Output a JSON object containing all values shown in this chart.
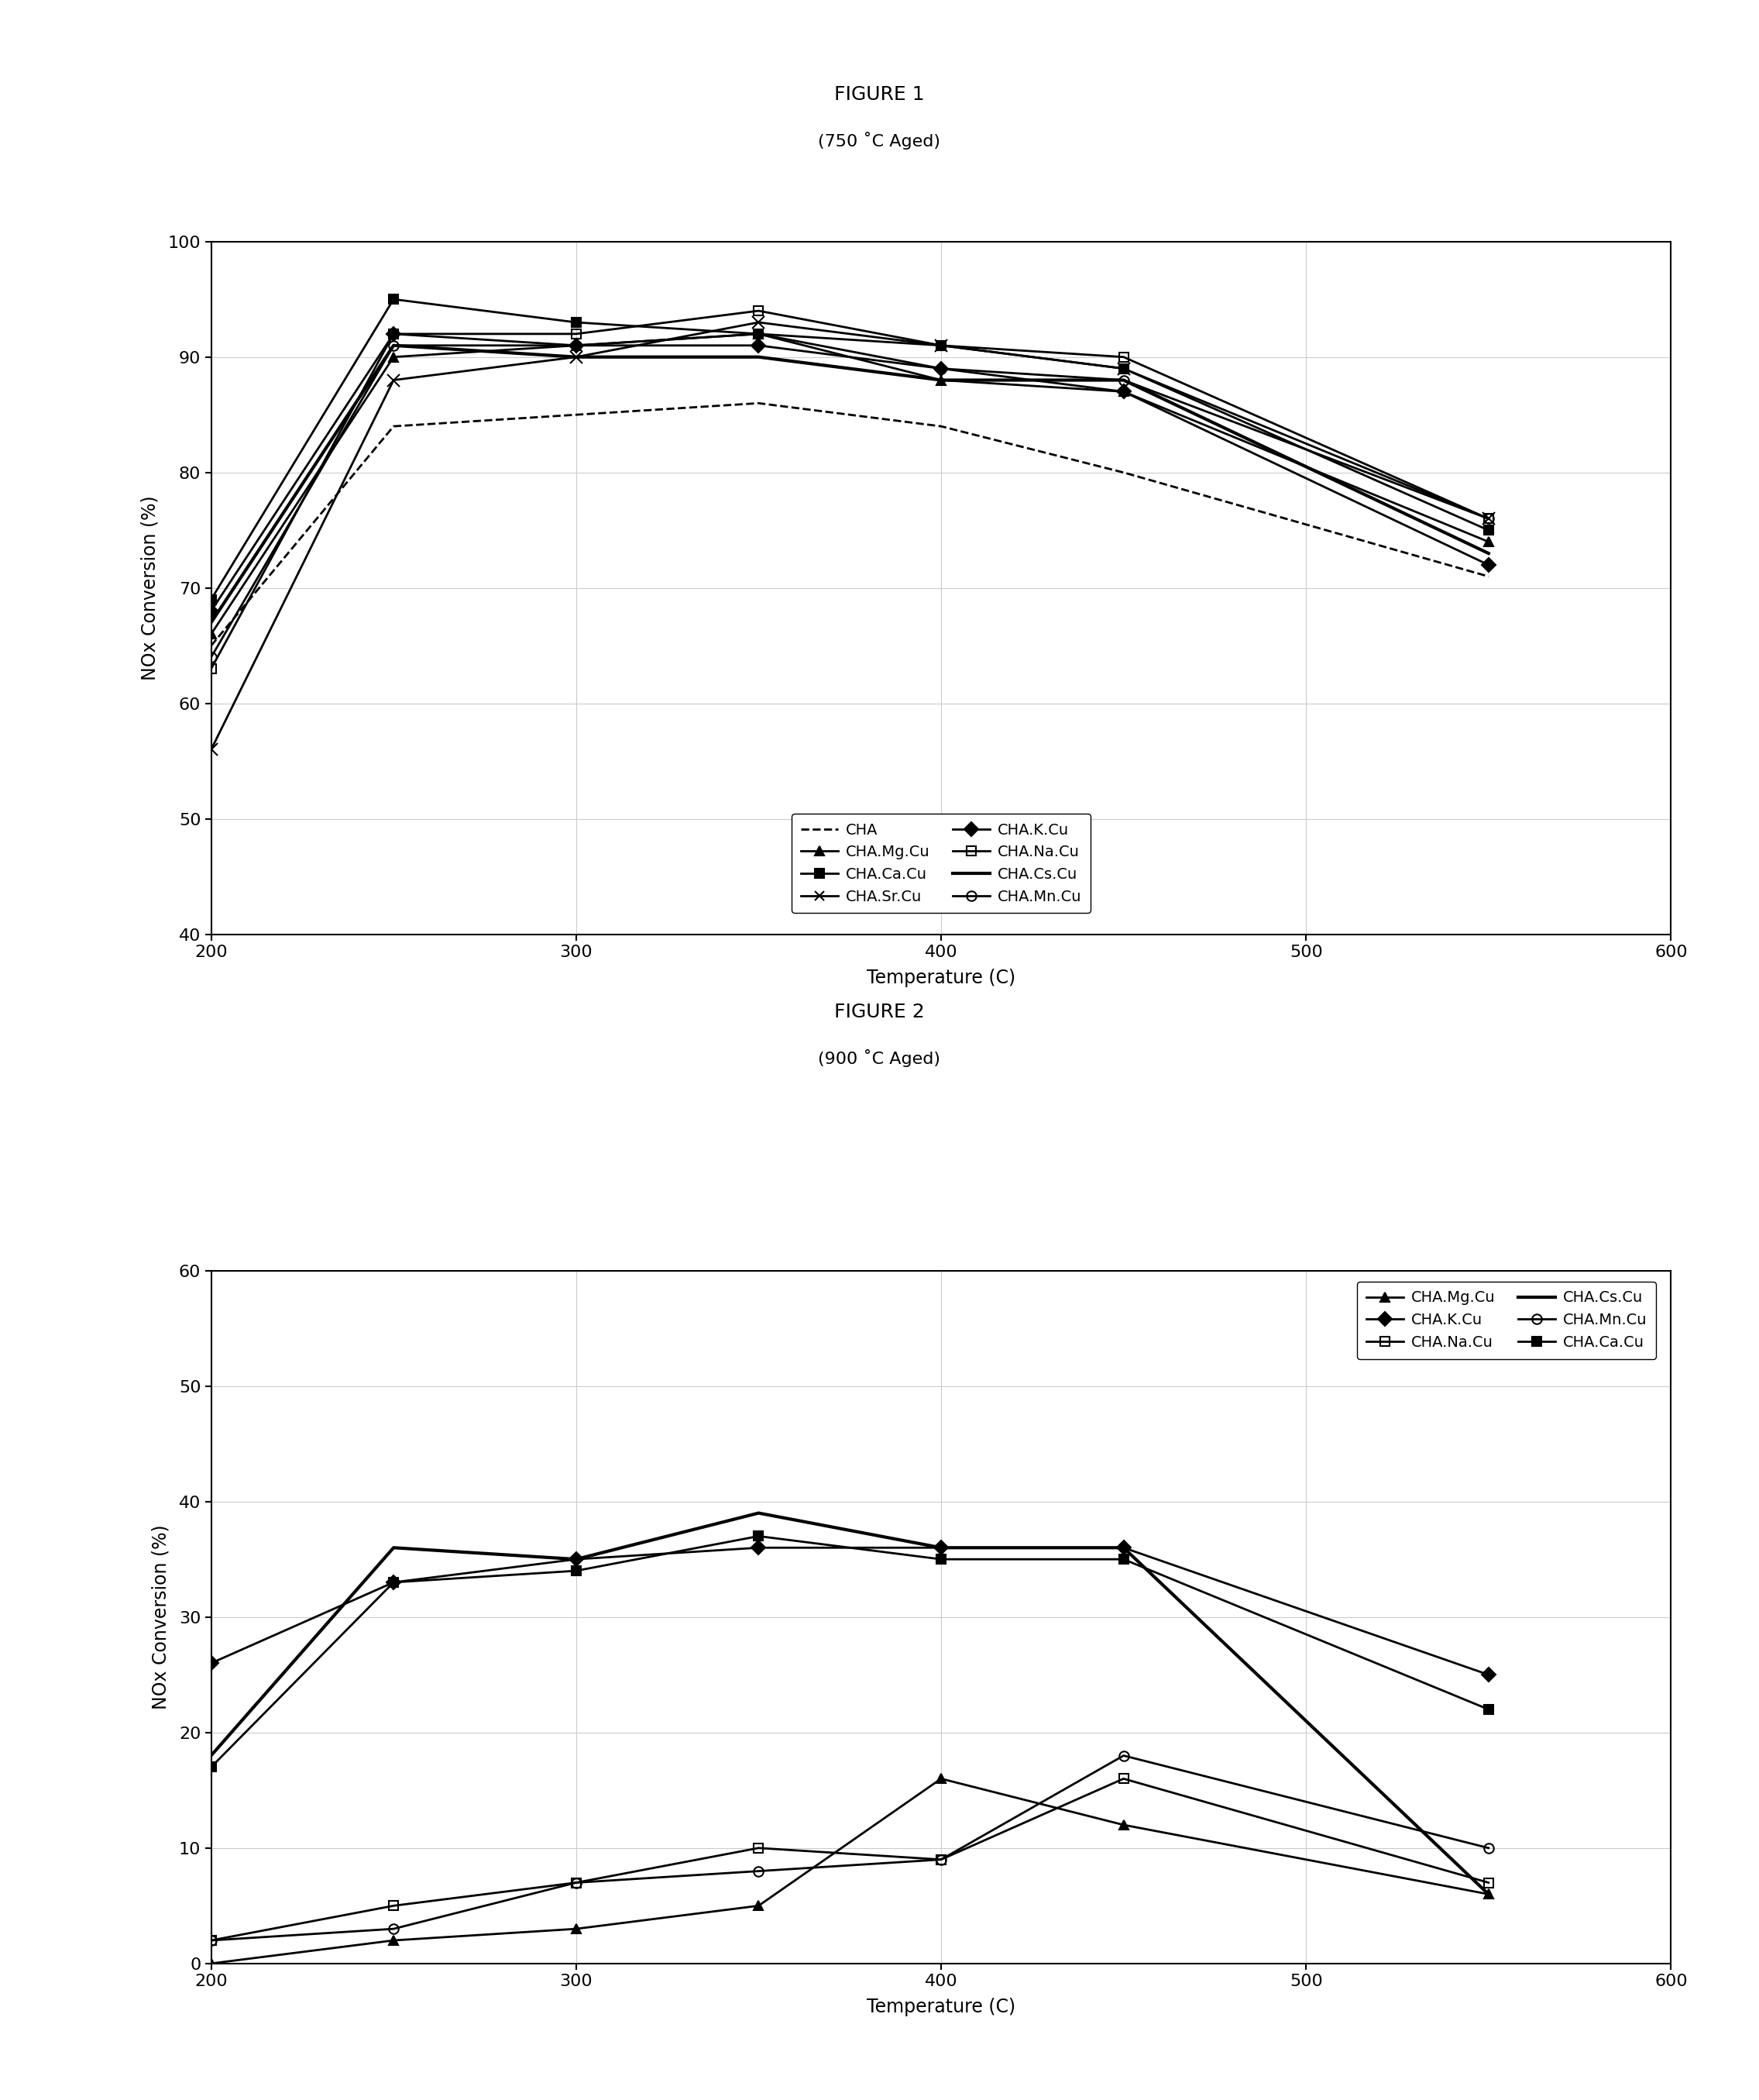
{
  "fig1_title": "FIGURE 1",
  "fig1_subtitle": "(750 ˚C Aged)",
  "fig2_title": "FIGURE 2",
  "fig2_subtitle": "(900 ˚C Aged)",
  "xlabel": "Temperature (C)",
  "ylabel": "NOx Conversion (%)",
  "fig1_xlim": [
    200,
    600
  ],
  "fig1_ylim": [
    40,
    100
  ],
  "fig2_xlim": [
    200,
    600
  ],
  "fig2_ylim": [
    0,
    60
  ],
  "fig1_xticks": [
    200,
    300,
    400,
    500,
    600
  ],
  "fig1_yticks": [
    40,
    50,
    60,
    70,
    80,
    90,
    100
  ],
  "fig2_xticks": [
    200,
    300,
    400,
    500,
    600
  ],
  "fig2_yticks": [
    0,
    10,
    20,
    30,
    40,
    50,
    60
  ],
  "fig1_series": {
    "CHA": {
      "x": [
        200,
        250,
        300,
        350,
        400,
        450,
        550
      ],
      "y": [
        65,
        84,
        85,
        86,
        84,
        80,
        71
      ],
      "style": "--",
      "marker": "none",
      "color": "#000000",
      "lw": 2.0,
      "ms": 0,
      "mfc": "#000000"
    },
    "CHA.Ca.Cu": {
      "x": [
        200,
        250,
        300,
        350,
        400,
        450,
        550
      ],
      "y": [
        69,
        95,
        93,
        92,
        91,
        89,
        75
      ],
      "style": "-",
      "marker": "s",
      "color": "#000000",
      "lw": 2.0,
      "ms": 9,
      "mfc": "#000000"
    },
    "CHA.K.Cu": {
      "x": [
        200,
        250,
        300,
        350,
        400,
        450,
        550
      ],
      "y": [
        68,
        92,
        91,
        91,
        89,
        87,
        72
      ],
      "style": "-",
      "marker": "D",
      "color": "#000000",
      "lw": 2.0,
      "ms": 9,
      "mfc": "#000000"
    },
    "CHA.Cs.Cu": {
      "x": [
        200,
        250,
        300,
        350,
        400,
        450,
        550
      ],
      "y": [
        67,
        91,
        90,
        90,
        88,
        88,
        73
      ],
      "style": "-",
      "marker": "none",
      "color": "#000000",
      "lw": 3.0,
      "ms": 0,
      "mfc": "#000000"
    },
    "CHA.Mg.Cu": {
      "x": [
        200,
        250,
        300,
        350,
        400,
        450,
        550
      ],
      "y": [
        66,
        90,
        91,
        92,
        88,
        87,
        74
      ],
      "style": "-",
      "marker": "^",
      "color": "#000000",
      "lw": 2.0,
      "ms": 9,
      "mfc": "#000000"
    },
    "CHA.Sr.Cu": {
      "x": [
        200,
        250,
        300,
        350,
        400,
        450,
        550
      ],
      "y": [
        56,
        88,
        90,
        93,
        91,
        89,
        76
      ],
      "style": "-",
      "marker": "x",
      "color": "#000000",
      "lw": 2.0,
      "ms": 11,
      "mfc": "#000000"
    },
    "CHA.Na.Cu": {
      "x": [
        200,
        250,
        300,
        350,
        400,
        450,
        550
      ],
      "y": [
        63,
        92,
        92,
        94,
        91,
        90,
        76
      ],
      "style": "-",
      "marker": "s",
      "color": "#000000",
      "lw": 2.0,
      "ms": 9,
      "mfc": "none"
    },
    "CHA.Mn.Cu": {
      "x": [
        200,
        250,
        300,
        350,
        400,
        450,
        550
      ],
      "y": [
        64,
        91,
        91,
        92,
        89,
        88,
        76
      ],
      "style": "-",
      "marker": "o",
      "color": "#000000",
      "lw": 2.0,
      "ms": 9,
      "mfc": "none"
    }
  },
  "fig2_series": {
    "CHA.Mg.Cu": {
      "x": [
        200,
        250,
        300,
        350,
        400,
        450,
        550
      ],
      "y": [
        0,
        2,
        3,
        5,
        16,
        12,
        6
      ],
      "style": "-",
      "marker": "^",
      "color": "#000000",
      "lw": 2.0,
      "ms": 9,
      "mfc": "#000000"
    },
    "CHA.Na.Cu": {
      "x": [
        200,
        250,
        300,
        350,
        400,
        450,
        550
      ],
      "y": [
        2,
        5,
        7,
        10,
        9,
        16,
        7
      ],
      "style": "-",
      "marker": "s",
      "color": "#000000",
      "lw": 2.0,
      "ms": 9,
      "mfc": "none"
    },
    "CHA.Mn.Cu": {
      "x": [
        200,
        250,
        300,
        350,
        400,
        450,
        550
      ],
      "y": [
        2,
        3,
        7,
        8,
        9,
        18,
        10
      ],
      "style": "-",
      "marker": "o",
      "color": "#000000",
      "lw": 2.0,
      "ms": 9,
      "mfc": "none"
    },
    "CHA.K.Cu": {
      "x": [
        200,
        250,
        300,
        350,
        400,
        450,
        550
      ],
      "y": [
        26,
        33,
        35,
        36,
        36,
        36,
        25
      ],
      "style": "-",
      "marker": "D",
      "color": "#000000",
      "lw": 2.0,
      "ms": 9,
      "mfc": "#000000"
    },
    "CHA.Cs.Cu": {
      "x": [
        200,
        250,
        300,
        350,
        400,
        450,
        550
      ],
      "y": [
        18,
        36,
        35,
        39,
        36,
        36,
        6
      ],
      "style": "-",
      "marker": "none",
      "color": "#000000",
      "lw": 3.0,
      "ms": 0,
      "mfc": "#000000"
    },
    "CHA.Ca.Cu": {
      "x": [
        200,
        250,
        300,
        350,
        400,
        450,
        550
      ],
      "y": [
        17,
        33,
        34,
        37,
        35,
        35,
        22
      ],
      "style": "-",
      "marker": "s",
      "color": "#000000",
      "lw": 2.0,
      "ms": 9,
      "mfc": "#000000"
    }
  },
  "fig1_legend_order": [
    "CHA",
    "CHA.Mg.Cu",
    "CHA.Ca.Cu",
    "CHA.Sr.Cu",
    "CHA.K.Cu",
    "CHA.Na.Cu",
    "CHA.Cs.Cu",
    "CHA.Mn.Cu"
  ],
  "fig2_legend_order": [
    "CHA.Mg.Cu",
    "CHA.K.Cu",
    "CHA.Na.Cu",
    "CHA.Cs.Cu",
    "CHA.Mn.Cu",
    "CHA.Ca.Cu"
  ]
}
